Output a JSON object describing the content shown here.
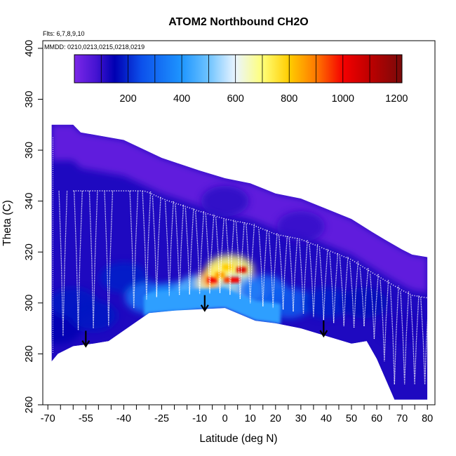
{
  "chart_data": {
    "type": "heatmap",
    "title": "ATOM2 Northbound CH2O",
    "flights_label": "Flts: 6,7,8,9,10",
    "dates_label": "MMDD: 0210,0213,0215,0218,0219",
    "xlabel": "Latitude (deg N)",
    "ylabel": "Theta (C)",
    "xlim": [
      -72,
      83
    ],
    "ylim": [
      260,
      403
    ],
    "x_tick_labels": [
      "-70",
      "-55",
      "-40",
      "-25",
      "-10",
      "0",
      "10",
      "20",
      "30",
      "40",
      "50",
      "60",
      "70",
      "80"
    ],
    "x_tick_values": [
      -70,
      -55,
      -40,
      -25,
      -10,
      0,
      10,
      20,
      30,
      40,
      50,
      60,
      70,
      80
    ],
    "y_tick_labels": [
      "260",
      "280",
      "300",
      "320",
      "340",
      "360",
      "380",
      "400"
    ],
    "y_tick_values": [
      260,
      280,
      300,
      320,
      340,
      360,
      380,
      400
    ],
    "colorbar": {
      "min": 0,
      "max": 1220,
      "tick_labels": [
        "200",
        "400",
        "600",
        "800",
        "1000",
        "1200"
      ],
      "tick_values": [
        200,
        400,
        600,
        800,
        1000,
        1200
      ]
    },
    "top_boundary": [
      [
        -68.5,
        370
      ],
      [
        -60,
        370
      ],
      [
        -57,
        367
      ],
      [
        -40,
        364
      ],
      [
        -25,
        357
      ],
      [
        -10,
        352
      ],
      [
        0,
        349
      ],
      [
        10,
        347
      ],
      [
        20,
        343
      ],
      [
        30,
        341
      ],
      [
        40,
        337
      ],
      [
        50,
        333
      ],
      [
        58,
        328
      ],
      [
        63,
        325
      ],
      [
        70,
        321
      ],
      [
        74,
        319
      ],
      [
        80,
        318
      ]
    ],
    "bottom_boundary": [
      [
        -68.5,
        277
      ],
      [
        -66,
        280
      ],
      [
        -60,
        283
      ],
      [
        -52,
        284
      ],
      [
        -46,
        285
      ],
      [
        -30,
        296
      ],
      [
        -20,
        297
      ],
      [
        0,
        298
      ],
      [
        12,
        293
      ],
      [
        20,
        292
      ],
      [
        30,
        290
      ],
      [
        40,
        287
      ],
      [
        50,
        284
      ],
      [
        56,
        285
      ],
      [
        60,
        278
      ],
      [
        67,
        262
      ],
      [
        72,
        262
      ],
      [
        80,
        262
      ]
    ],
    "concentration_field": [
      {
        "lat": -66,
        "theta": 290,
        "value": 150
      },
      {
        "lat": -60,
        "theta": 300,
        "value": 180
      },
      {
        "lat": -52,
        "theta": 295,
        "value": 180
      },
      {
        "lat": -40,
        "theta": 310,
        "value": 190
      },
      {
        "lat": -30,
        "theta": 302,
        "value": 330
      },
      {
        "lat": -20,
        "theta": 302,
        "value": 400
      },
      {
        "lat": -10,
        "theta": 305,
        "value": 470
      },
      {
        "lat": -2,
        "theta": 308,
        "value": 660
      },
      {
        "lat": 0,
        "theta": 310,
        "value": 880
      },
      {
        "lat": 2,
        "theta": 313,
        "value": 700
      },
      {
        "lat": 6,
        "theta": 305,
        "value": 520
      },
      {
        "lat": 15,
        "theta": 305,
        "value": 320
      },
      {
        "lat": 25,
        "theta": 300,
        "value": 280
      },
      {
        "lat": 40,
        "theta": 300,
        "value": 190
      },
      {
        "lat": 55,
        "theta": 300,
        "value": 160
      },
      {
        "lat": 70,
        "theta": 290,
        "value": 130
      },
      {
        "lat": 0,
        "theta": 340,
        "value": 110
      },
      {
        "lat": 30,
        "theta": 330,
        "value": 100
      }
    ],
    "hotspots": [
      {
        "lat": -5,
        "theta": 309,
        "value": 1000
      },
      {
        "lat": -2,
        "theta": 311,
        "value": 850
      },
      {
        "lat": 1.5,
        "theta": 309,
        "value": 950
      },
      {
        "lat": 4,
        "theta": 309,
        "value": 1000
      },
      {
        "lat": 6.5,
        "theta": 313,
        "value": 1050
      },
      {
        "lat": 1,
        "theta": 314,
        "value": 800
      }
    ],
    "arrows": [
      {
        "lat": -55,
        "theta": 283
      },
      {
        "lat": -8,
        "theta": 297
      },
      {
        "lat": 39,
        "theta": 287
      }
    ]
  }
}
